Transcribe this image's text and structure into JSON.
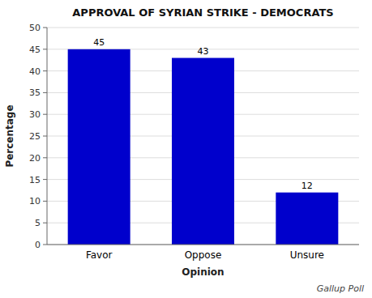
{
  "chart_data": {
    "type": "bar",
    "title": "APPROVAL OF SYRIAN STRIKE - DEMOCRATS",
    "categories": [
      "Favor",
      "Oppose",
      "Unsure"
    ],
    "values": [
      45,
      43,
      12
    ],
    "xlabel": "Opinion",
    "ylabel": "Percentage",
    "ylim": [
      0,
      50
    ],
    "yticks": [
      0,
      5,
      10,
      15,
      20,
      25,
      30,
      35,
      40,
      45,
      50
    ],
    "color": "#0000cc",
    "grid": true,
    "data_labels": true,
    "annotations": [
      "Gallup Poll"
    ]
  }
}
